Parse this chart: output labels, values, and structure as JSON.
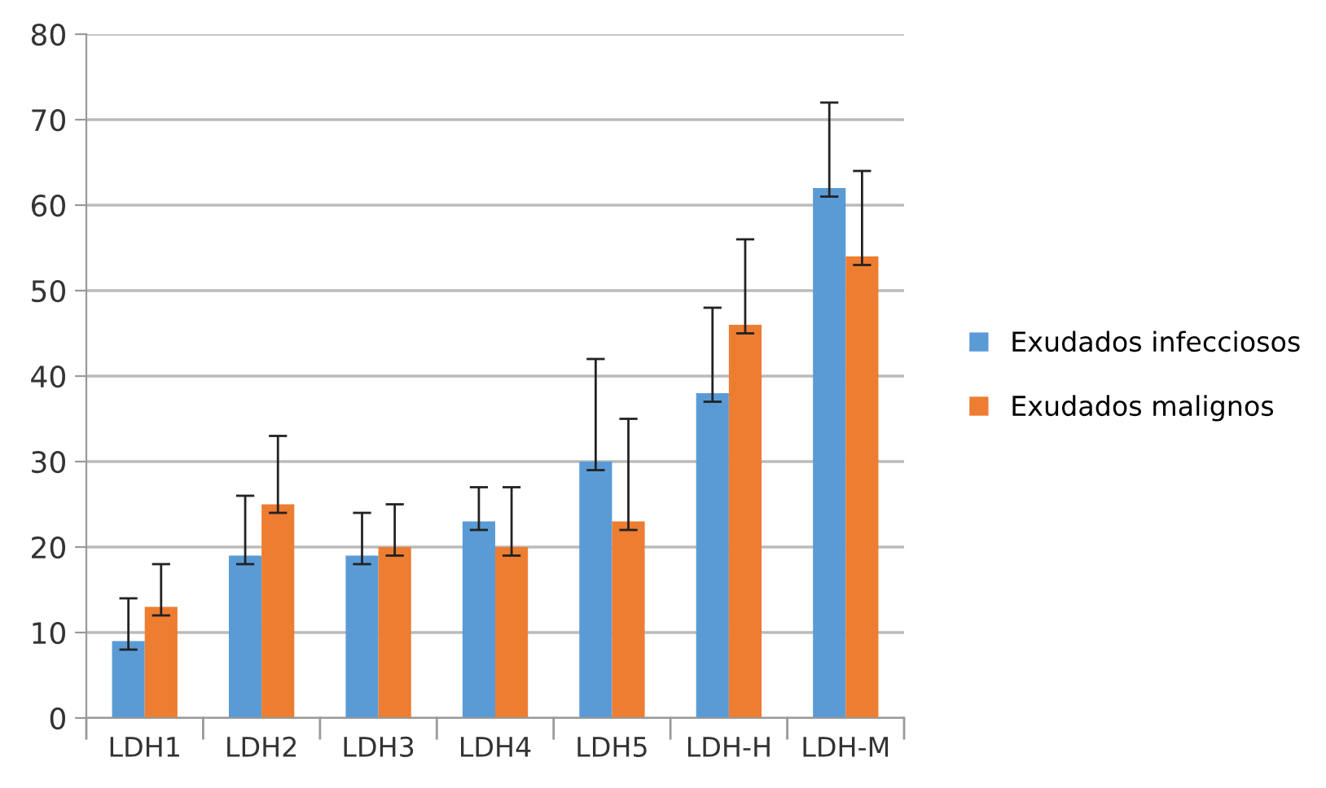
{
  "chart_data": {
    "type": "bar",
    "categories": [
      "LDH1",
      "LDH2",
      "LDH3",
      "LDH4",
      "LDH5",
      "LDH-H",
      "LDH-M"
    ],
    "series": [
      {
        "name": "Exudados infecciosos",
        "color": "#5b9bd5",
        "values": [
          9,
          19,
          19,
          23,
          30,
          38,
          62
        ],
        "errors": [
          [
            8,
            14
          ],
          [
            18,
            26
          ],
          [
            18,
            24
          ],
          [
            22,
            27
          ],
          [
            29,
            42
          ],
          [
            37,
            48
          ],
          [
            61,
            72
          ]
        ]
      },
      {
        "name": "Exudados malignos",
        "color": "#ed7d31",
        "values": [
          13,
          25,
          20,
          20,
          23,
          46,
          54
        ],
        "errors": [
          [
            12,
            18
          ],
          [
            24,
            33
          ],
          [
            19,
            25
          ],
          [
            19,
            27
          ],
          [
            22,
            35
          ],
          [
            45,
            56
          ],
          [
            53,
            64
          ]
        ]
      }
    ],
    "ylim": [
      0,
      80
    ],
    "yticks": [
      0,
      10,
      20,
      30,
      40,
      50,
      60,
      70,
      80
    ],
    "grid": "y",
    "legend": "right"
  }
}
